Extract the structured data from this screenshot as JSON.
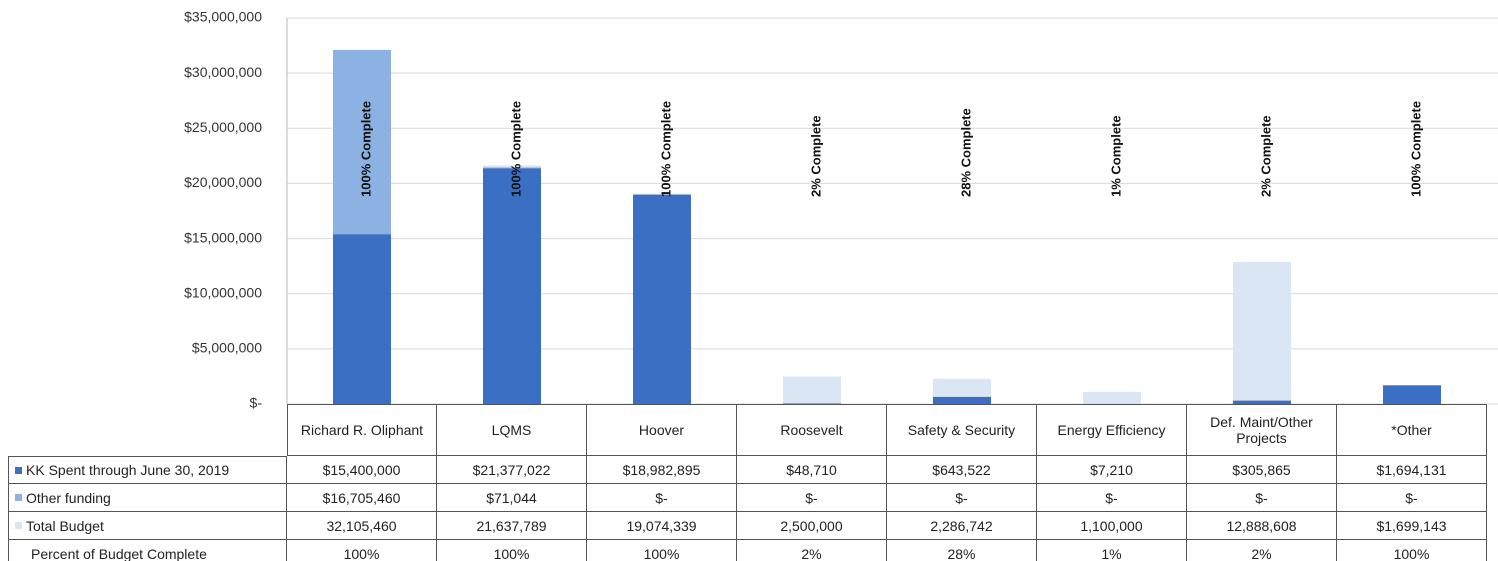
{
  "chart_data": {
    "type": "bar",
    "categories": [
      "Richard R. Oliphant",
      "LQMS",
      "Hoover",
      "Roosevelt",
      "Safety & Security",
      "Energy Efficiency",
      "Def. Maint/Other Projects",
      "*Other"
    ],
    "series": [
      {
        "name": "KK Spent through June 30, 2019",
        "color": "#3b6fc4",
        "values": [
          15400000,
          21377022,
          18982895,
          48710,
          643522,
          7210,
          305865,
          1694131
        ],
        "value_labels": [
          "$15,400,000",
          "$21,377,022",
          "$18,982,895",
          "$48,710",
          "$643,522",
          "$7,210",
          "$305,865",
          "$1,694,131"
        ]
      },
      {
        "name": "Other funding",
        "color": "#8cb2e3",
        "values": [
          16705460,
          71044,
          0,
          0,
          0,
          0,
          0,
          0
        ],
        "value_labels": [
          "$16,705,460",
          "$71,044",
          "$-",
          "$-",
          "$-",
          "$-",
          "$-",
          "$-"
        ]
      },
      {
        "name": "Total Budget",
        "color": "#dbe6f4",
        "values": [
          32105460,
          21637789,
          19074339,
          2500000,
          2286742,
          1100000,
          12888608,
          1699143
        ],
        "value_labels": [
          "32,105,460",
          "21,637,789",
          "19,074,339",
          "2,500,000",
          "2,286,742",
          "1,100,000",
          "12,888,608",
          "$1,699,143"
        ]
      }
    ],
    "percent_complete": {
      "name": "Percent of Budget Complete",
      "values": [
        100,
        100,
        100,
        2,
        28,
        1,
        2,
        100
      ],
      "value_labels": [
        "100%",
        "100%",
        "100%",
        "2%",
        "28%",
        "1%",
        "2%",
        "100%"
      ]
    },
    "annotations": [
      "100% Complete",
      "100% Complete",
      "100% Complete",
      "2% Complete",
      "28% Complete",
      "1% Complete",
      "2% Complete",
      "100% Complete"
    ],
    "ylim": [
      0,
      35000000
    ],
    "yticks": [
      {
        "value": 0,
        "label": "$-"
      },
      {
        "value": 5000000,
        "label": "$5,000,000"
      },
      {
        "value": 10000000,
        "label": "$10,000,000"
      },
      {
        "value": 15000000,
        "label": "$15,000,000"
      },
      {
        "value": 20000000,
        "label": "$20,000,000"
      },
      {
        "value": 25000000,
        "label": "$25,000,000"
      },
      {
        "value": 30000000,
        "label": "$30,000,000"
      },
      {
        "value": 35000000,
        "label": "$35,000,000"
      }
    ],
    "grid": true
  }
}
